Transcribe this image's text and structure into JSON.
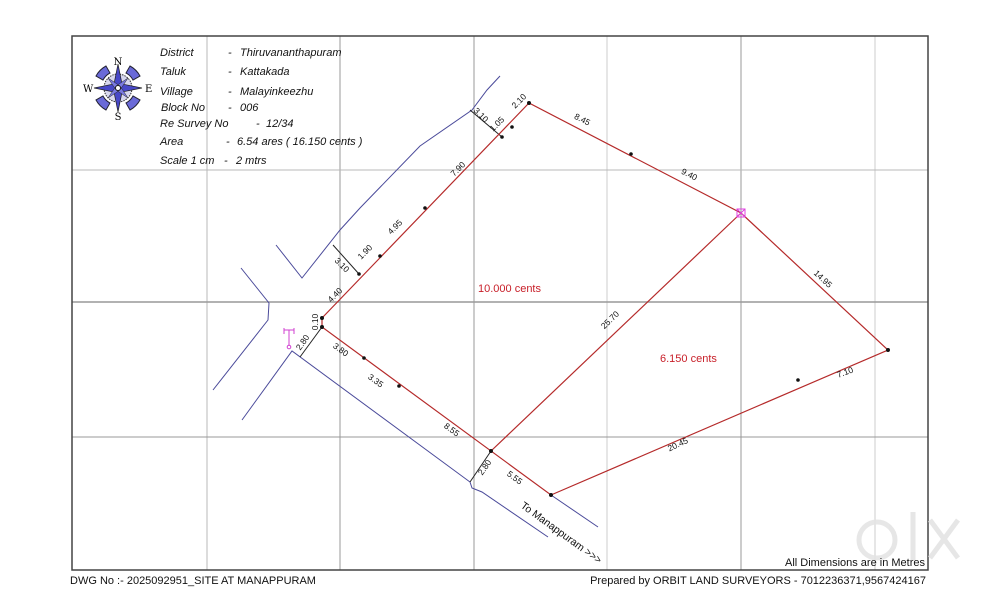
{
  "header": {
    "rows": [
      {
        "label": "District",
        "value": "Thiruvananthapuram"
      },
      {
        "label": "Taluk",
        "value": "Kattakada"
      },
      {
        "label": "Village",
        "value": "Malayinkeezhu"
      },
      {
        "label": "Block No",
        "value": "006"
      },
      {
        "label": "Re Survey No",
        "value": "12/34"
      },
      {
        "label": "Area",
        "value": "6.54 ares ( 16.150 cents )"
      },
      {
        "label": "Scale 1 cm",
        "value": "2 mtrs"
      }
    ],
    "separator": "-"
  },
  "compass": {
    "n": "N",
    "s": "S",
    "e": "E",
    "w": "W",
    "icon": "compass-rose-icon"
  },
  "plot": {
    "areas": [
      "10.000 cents",
      "6.150 cents"
    ],
    "dimensions": {
      "north_west": [
        "4.40",
        "1.90",
        "4.95",
        "7.90",
        "1.05",
        "2.10"
      ],
      "north_east": [
        "8.45",
        "9.40"
      ],
      "east": "14.95",
      "south_east": [
        "7.10",
        "20.45"
      ],
      "diagonal": "25.70",
      "south_west": [
        "3.80",
        "3.35",
        "8.55",
        "5.55"
      ],
      "road_offsets": [
        "3.10",
        "3.10",
        "2.80",
        "2.80",
        "0.10"
      ]
    },
    "road_label": "To Manappuram >>>",
    "colors": {
      "boundary": "#c8202a",
      "road": "#4a4a9a",
      "grid": "#b8b8b8",
      "marker": "#e040e0"
    }
  },
  "footer": {
    "units_note": "All Dimensions are in Metres",
    "dwg_no": "DWG No :- 2025092951_SITE AT MANAPPURAM",
    "prepared_by": "Prepared by ORBIT LAND SURVEYORS - 7012236371,9567424167"
  },
  "watermark": "OLX INDIA"
}
